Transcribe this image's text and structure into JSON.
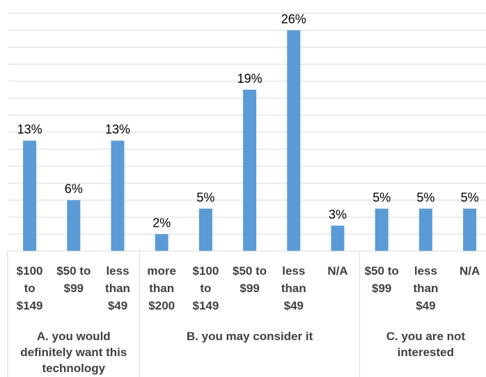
{
  "chart_data": {
    "type": "bar",
    "title": "",
    "xlabel": "",
    "ylabel": "",
    "ylim": [
      0,
      28
    ],
    "grid": true,
    "legend": "none",
    "colors": {
      "bar": "#5B9BD5",
      "grid": "#D9D9D9",
      "text": "#404040"
    },
    "groups": [
      {
        "label": "A. you would definitely want this technology",
        "label_lines": [
          "A. you would",
          "definitely want this",
          "technology"
        ],
        "categories": [
          {
            "label_lines": [
              "$100",
              "to",
              "$149"
            ],
            "value": 13,
            "data_label": "13%"
          },
          {
            "label_lines": [
              "$50 to",
              "$99"
            ],
            "value": 6,
            "data_label": "6%"
          },
          {
            "label_lines": [
              "less",
              "than",
              "$49"
            ],
            "value": 13,
            "data_label": "13%"
          }
        ]
      },
      {
        "label": "B. you may consider it",
        "label_lines": [
          "B. you may consider it"
        ],
        "categories": [
          {
            "label_lines": [
              "more",
              "than",
              "$200"
            ],
            "value": 2,
            "data_label": "2%"
          },
          {
            "label_lines": [
              "$100",
              "to",
              "$149"
            ],
            "value": 5,
            "data_label": "5%"
          },
          {
            "label_lines": [
              "$50 to",
              "$99"
            ],
            "value": 19,
            "data_label": "19%"
          },
          {
            "label_lines": [
              "less",
              "than",
              "$49"
            ],
            "value": 26,
            "data_label": "26%"
          },
          {
            "label_lines": [
              "N/A"
            ],
            "value": 3,
            "data_label": "3%"
          }
        ]
      },
      {
        "label": "C. you are not interested",
        "label_lines": [
          "C. you are not",
          "interested"
        ],
        "categories": [
          {
            "label_lines": [
              "$50 to",
              "$99"
            ],
            "value": 5,
            "data_label": "5%"
          },
          {
            "label_lines": [
              "less",
              "than",
              "$49"
            ],
            "value": 5,
            "data_label": "5%"
          },
          {
            "label_lines": [
              "N/A"
            ],
            "value": 5,
            "data_label": "5%"
          }
        ]
      }
    ]
  }
}
